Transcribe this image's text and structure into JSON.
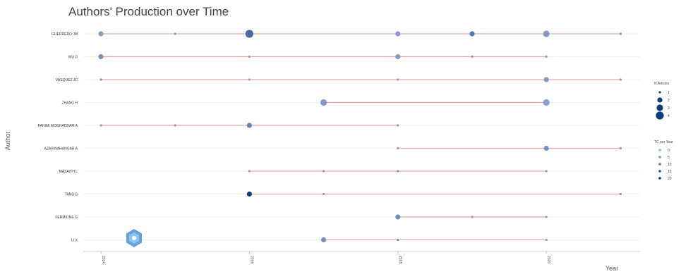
{
  "chart_data": {
    "type": "scatter",
    "title": "Authors' Production over Time",
    "xlabel": "Year",
    "ylabel": "Author",
    "xlim": [
      2014,
      2022
    ],
    "x_ticks": [
      "2014",
      "2016",
      "2018",
      "2020"
    ],
    "authors": [
      {
        "name": "GUERRERO JM",
        "start": 2014,
        "end": 2021,
        "points": [
          {
            "year": 2014,
            "articles": 2,
            "tc": 4
          },
          {
            "year": 2015,
            "articles": 1,
            "tc": 2
          },
          {
            "year": 2016,
            "articles": 4,
            "tc": 12
          },
          {
            "year": 2018,
            "articles": 2,
            "tc": 4
          },
          {
            "year": 2019,
            "articles": 2,
            "tc": 10
          },
          {
            "year": 2020,
            "articles": 3,
            "tc": 4
          },
          {
            "year": 2021,
            "articles": 1,
            "tc": 1
          }
        ]
      },
      {
        "name": "WU D",
        "start": 2014,
        "end": 2020,
        "points": [
          {
            "year": 2014,
            "articles": 2,
            "tc": 6
          },
          {
            "year": 2016,
            "articles": 1,
            "tc": 2
          },
          {
            "year": 2018,
            "articles": 2,
            "tc": 4
          },
          {
            "year": 2019,
            "articles": 1,
            "tc": 2
          },
          {
            "year": 2020,
            "articles": 1,
            "tc": 1
          }
        ]
      },
      {
        "name": "VASQUEZ JC",
        "start": 2014,
        "end": 2021,
        "points": [
          {
            "year": 2014,
            "articles": 1,
            "tc": 6
          },
          {
            "year": 2016,
            "articles": 1,
            "tc": 3
          },
          {
            "year": 2018,
            "articles": 1,
            "tc": 2
          },
          {
            "year": 2020,
            "articles": 2,
            "tc": 4
          },
          {
            "year": 2021,
            "articles": 1,
            "tc": 1
          }
        ]
      },
      {
        "name": "ZHANG H",
        "start": 2017,
        "end": 2020,
        "points": [
          {
            "year": 2017,
            "articles": 3,
            "tc": 4
          },
          {
            "year": 2020,
            "articles": 3,
            "tc": 3
          }
        ]
      },
      {
        "name": "FAHIMI MOGHADDAM A",
        "start": 2014,
        "end": 2018,
        "points": [
          {
            "year": 2014,
            "articles": 1,
            "tc": 2
          },
          {
            "year": 2015,
            "articles": 1,
            "tc": 2
          },
          {
            "year": 2016,
            "articles": 2,
            "tc": 8
          },
          {
            "year": 2018,
            "articles": 1,
            "tc": 1
          }
        ]
      },
      {
        "name": "AZARINAHANGAR A",
        "start": 2018,
        "end": 2021,
        "points": [
          {
            "year": 2018,
            "articles": 1,
            "tc": 1
          },
          {
            "year": 2020,
            "articles": 2,
            "tc": 6
          },
          {
            "year": 2021,
            "articles": 1,
            "tc": 1
          }
        ]
      },
      {
        "name": "MASAITH L",
        "start": 2016,
        "end": 2020,
        "points": [
          {
            "year": 2016,
            "articles": 1,
            "tc": 2
          },
          {
            "year": 2017,
            "articles": 1,
            "tc": 2
          },
          {
            "year": 2018,
            "articles": 1,
            "tc": 4
          },
          {
            "year": 2020,
            "articles": 1,
            "tc": 2
          }
        ]
      },
      {
        "name": "TANG S",
        "start": 2016,
        "end": 2021,
        "points": [
          {
            "year": 2016,
            "articles": 2,
            "tc": 20
          },
          {
            "year": 2017,
            "articles": 1,
            "tc": 1
          },
          {
            "year": 2021,
            "articles": 1,
            "tc": 1
          }
        ]
      },
      {
        "name": "FERMIONE G",
        "start": 2018,
        "end": 2020,
        "points": [
          {
            "year": 2018,
            "articles": 2,
            "tc": 6
          },
          {
            "year": 2019,
            "articles": 1,
            "tc": 2
          },
          {
            "year": 2020,
            "articles": 1,
            "tc": 1
          }
        ]
      },
      {
        "name": "LI X",
        "start": 2017,
        "end": 2020,
        "points": [
          {
            "year": 2017,
            "articles": 2,
            "tc": 6
          },
          {
            "year": 2018,
            "articles": 1,
            "tc": 6
          },
          {
            "year": 2020,
            "articles": 1,
            "tc": 1
          }
        ]
      }
    ],
    "legend_articles": {
      "title": "N.Articles",
      "items": [
        1,
        2,
        3,
        4
      ]
    },
    "legend_tc": {
      "title": "TC per Year",
      "items": [
        0,
        5,
        10,
        15,
        20
      ]
    },
    "grid": true,
    "legend_position": "right",
    "colors": {
      "line": "#e2a6a6",
      "point_light": "#9db4d9",
      "point_dark": "#0d3c7c",
      "axis": "#cccccc"
    }
  }
}
